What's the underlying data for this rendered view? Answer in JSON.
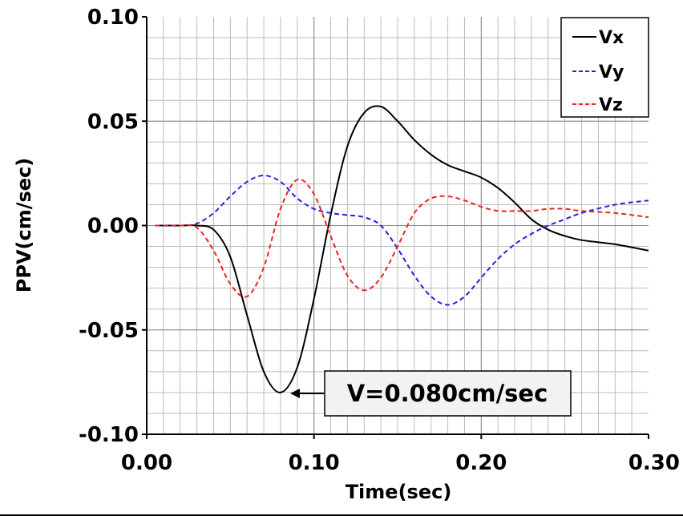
{
  "chart_data": {
    "type": "line",
    "xlabel": "Time(sec)",
    "ylabel": "PPV(cm/sec)",
    "xlim": [
      0,
      0.3
    ],
    "ylim": [
      -0.1,
      0.1
    ],
    "x_ticks": [
      "0.00",
      "0.10",
      "0.20",
      "0.30"
    ],
    "y_ticks": [
      "0.10",
      "0.05",
      "0.00",
      "-0.05",
      "-0.10"
    ],
    "grid": true,
    "legend_position": "top-right",
    "series": [
      {
        "name": "Vx",
        "color": "#000000",
        "style": "solid",
        "x": [
          0.005,
          0.02,
          0.03,
          0.04,
          0.05,
          0.06,
          0.07,
          0.08,
          0.09,
          0.1,
          0.11,
          0.12,
          0.13,
          0.14,
          0.15,
          0.16,
          0.17,
          0.18,
          0.19,
          0.2,
          0.21,
          0.22,
          0.23,
          0.24,
          0.25,
          0.26,
          0.28,
          0.3
        ],
        "y": [
          0,
          0,
          0,
          -0.002,
          -0.015,
          -0.043,
          -0.07,
          -0.08,
          -0.068,
          -0.035,
          0.005,
          0.038,
          0.054,
          0.057,
          0.05,
          0.041,
          0.034,
          0.029,
          0.026,
          0.023,
          0.018,
          0.011,
          0.003,
          -0.002,
          -0.005,
          -0.007,
          -0.009,
          -0.012
        ]
      },
      {
        "name": "Vy",
        "color": "#2222dd",
        "style": "dashed",
        "x": [
          0.005,
          0.02,
          0.03,
          0.04,
          0.05,
          0.06,
          0.07,
          0.08,
          0.09,
          0.1,
          0.11,
          0.12,
          0.13,
          0.14,
          0.15,
          0.16,
          0.17,
          0.18,
          0.19,
          0.2,
          0.21,
          0.22,
          0.23,
          0.24,
          0.25,
          0.26,
          0.28,
          0.3
        ],
        "y": [
          0,
          0,
          0.001,
          0.006,
          0.014,
          0.021,
          0.024,
          0.021,
          0.013,
          0.008,
          0.006,
          0.005,
          0.004,
          0.0,
          -0.011,
          -0.024,
          -0.034,
          -0.038,
          -0.034,
          -0.025,
          -0.016,
          -0.009,
          -0.004,
          0.0,
          0.003,
          0.006,
          0.01,
          0.012
        ]
      },
      {
        "name": "Vz",
        "color": "#ee2222",
        "style": "dashed",
        "x": [
          0.005,
          0.02,
          0.03,
          0.04,
          0.05,
          0.06,
          0.07,
          0.08,
          0.09,
          0.1,
          0.11,
          0.12,
          0.13,
          0.14,
          0.15,
          0.16,
          0.17,
          0.18,
          0.19,
          0.2,
          0.21,
          0.22,
          0.23,
          0.24,
          0.25,
          0.26,
          0.28,
          0.3
        ],
        "y": [
          0,
          0,
          -0.001,
          -0.012,
          -0.028,
          -0.034,
          -0.02,
          0.008,
          0.022,
          0.015,
          -0.005,
          -0.024,
          -0.031,
          -0.025,
          -0.01,
          0.006,
          0.013,
          0.014,
          0.012,
          0.009,
          0.007,
          0.007,
          0.007,
          0.008,
          0.008,
          0.007,
          0.006,
          0.004
        ]
      }
    ],
    "annotations": [
      {
        "text": "V=0.080cm/sec",
        "x": 0.081,
        "y": -0.08
      }
    ]
  }
}
